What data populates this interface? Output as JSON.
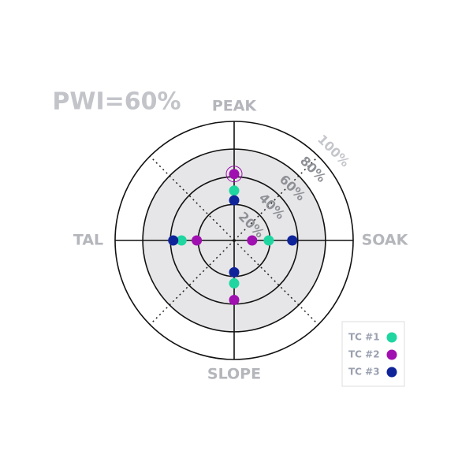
{
  "chart_data": {
    "type": "polar-dot",
    "title": "PWI=60%",
    "categories": [
      "PEAK",
      "SOAK",
      "SLOPE",
      "TAL"
    ],
    "series": [
      {
        "name": "TC #1",
        "color": "#1fd6a0",
        "values": [
          50,
          39,
          45,
          52
        ]
      },
      {
        "name": "TC #2",
        "color": "#a010b0",
        "values": [
          62,
          27,
          57,
          41
        ]
      },
      {
        "name": "TC #3",
        "color": "#10249a",
        "values": [
          43,
          56,
          37,
          58
        ]
      }
    ],
    "rlim": [
      14,
      100
    ],
    "rticks": [
      {
        "value": 20,
        "label": "20%"
      },
      {
        "value": 40,
        "label": "40%"
      },
      {
        "value": 60,
        "label": "60%"
      },
      {
        "value": 80,
        "label": "80%"
      },
      {
        "value": 100,
        "label": "100%"
      }
    ]
  }
}
